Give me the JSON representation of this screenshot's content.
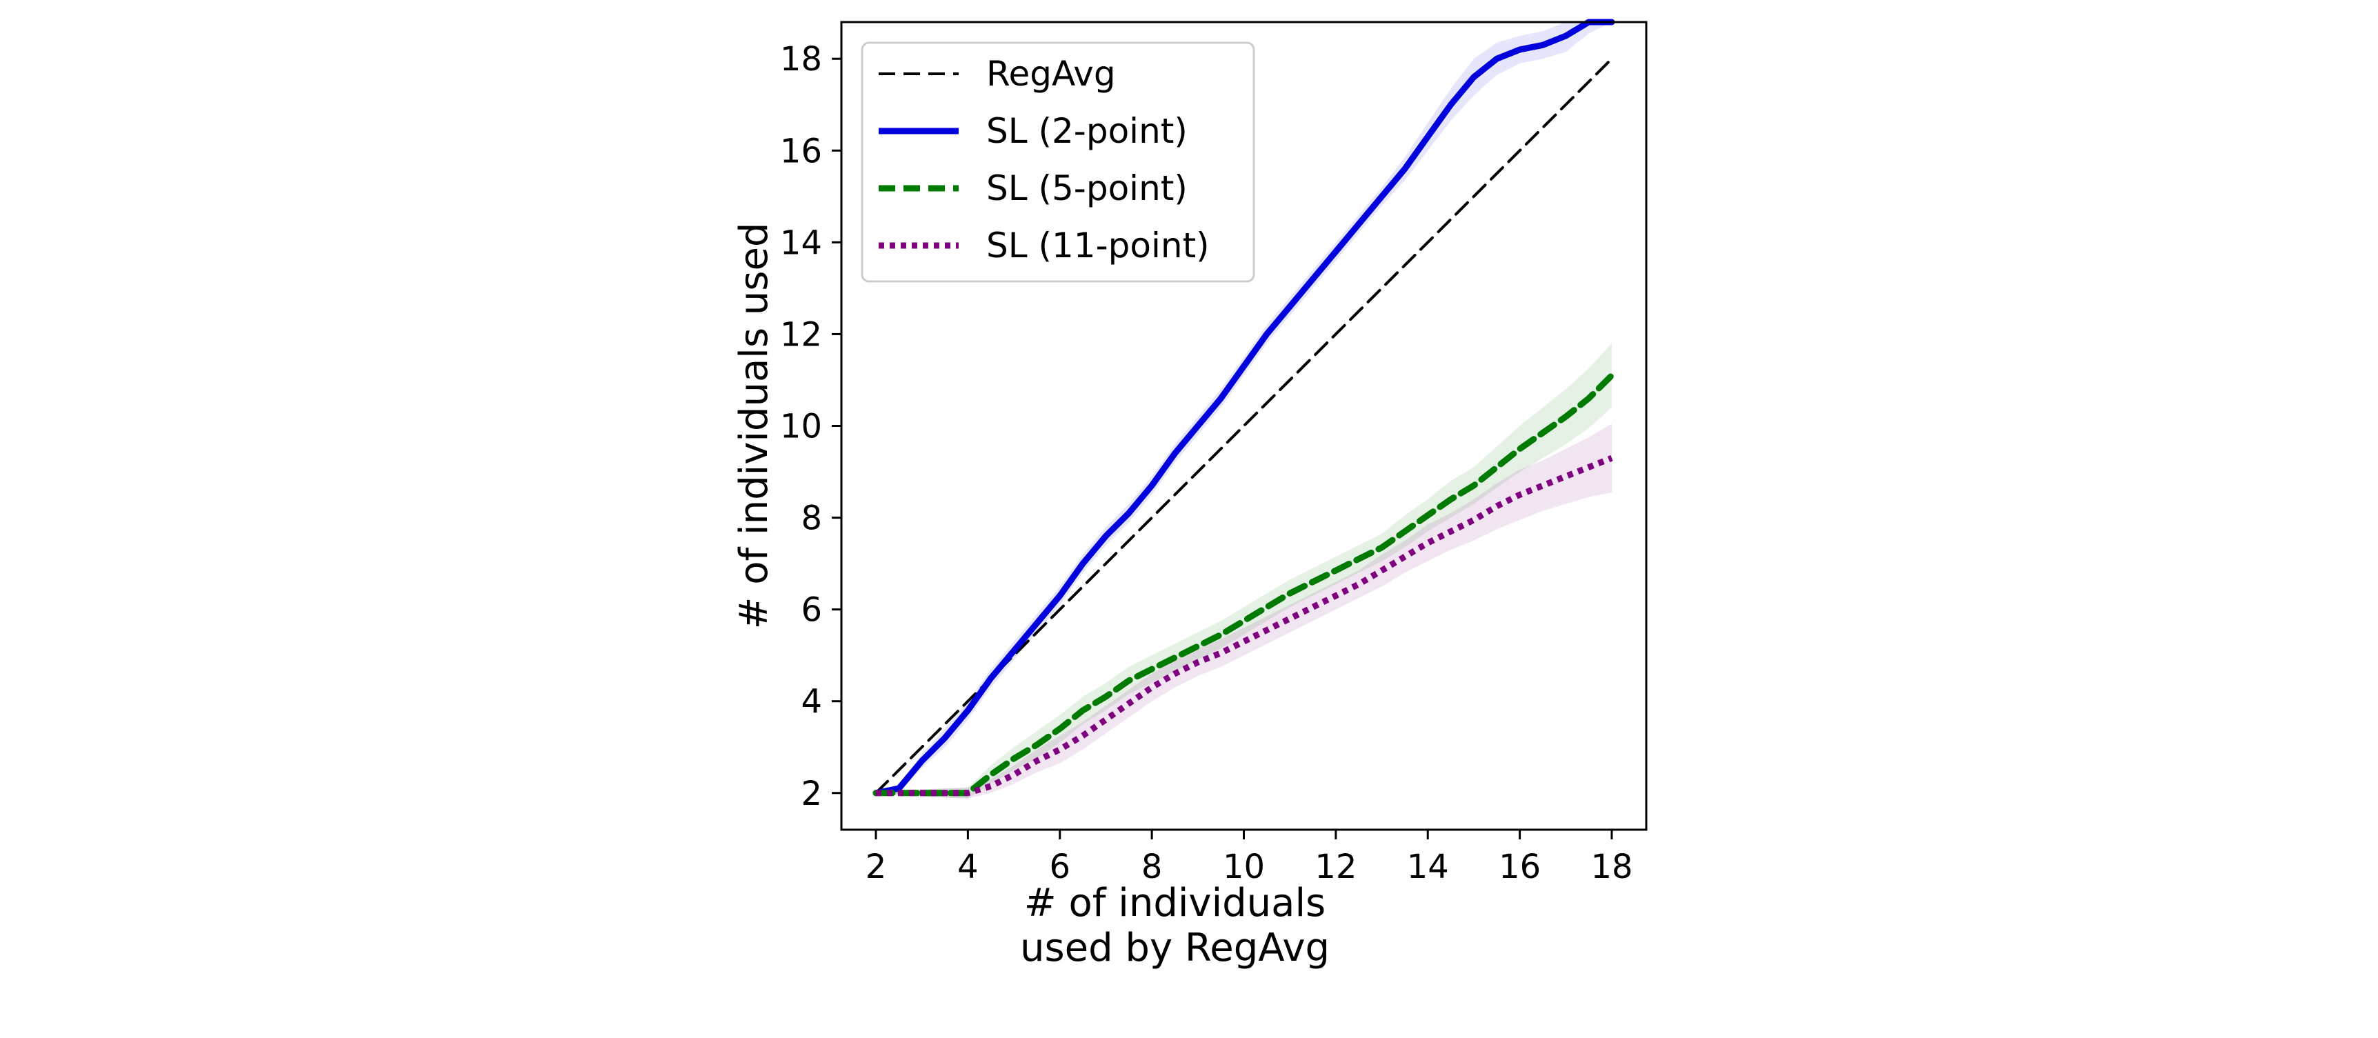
{
  "chart_data": {
    "type": "line",
    "xlabel_lines": [
      "# of individuals",
      "used by RegAvg"
    ],
    "ylabel": "# of individuals used",
    "xlim": [
      1.25,
      18.75
    ],
    "ylim": [
      1.2,
      18.8
    ],
    "xticks": [
      2,
      4,
      6,
      8,
      10,
      12,
      14,
      16,
      18
    ],
    "yticks": [
      2,
      4,
      6,
      8,
      10,
      12,
      14,
      16,
      18
    ],
    "legend_position": "upper left",
    "series": [
      {
        "name": "RegAvg",
        "color": "#000000",
        "style": "dashed",
        "x": [
          2,
          18
        ],
        "y": [
          2,
          18
        ]
      },
      {
        "name": "SL (2-point)",
        "color": "#0000dd",
        "style": "solid",
        "band": true,
        "x": [
          2,
          2.5,
          3,
          3.5,
          4,
          4.5,
          5,
          5.5,
          6,
          6.5,
          7,
          7.5,
          8,
          8.5,
          9,
          9.5,
          10,
          10.5,
          11,
          11.5,
          12,
          12.5,
          13,
          13.5,
          14,
          14.5,
          15,
          15.5,
          16,
          16.5,
          17,
          17.5,
          18
        ],
        "y": [
          2,
          2.1,
          2.7,
          3.2,
          3.8,
          4.5,
          5.1,
          5.7,
          6.3,
          7.0,
          7.6,
          8.1,
          8.7,
          9.4,
          10.0,
          10.6,
          11.3,
          12.0,
          12.6,
          13.2,
          13.8,
          14.4,
          15.0,
          15.6,
          16.3,
          17.0,
          17.6,
          18.0,
          18.2,
          18.3,
          18.5,
          19.0,
          19.6
        ],
        "band_width": [
          0,
          0.1,
          0.15,
          0.2,
          0.2,
          0.2,
          0.2,
          0.2,
          0.2,
          0.2,
          0.2,
          0.2,
          0.2,
          0.2,
          0.2,
          0.2,
          0.2,
          0.2,
          0.2,
          0.2,
          0.2,
          0.2,
          0.2,
          0.25,
          0.3,
          0.35,
          0.4,
          0.35,
          0.3,
          0.3,
          0.35,
          0.45,
          0.6
        ]
      },
      {
        "name": "SL (5-point)",
        "color": "#007a00",
        "style": "dashed",
        "band": true,
        "x": [
          2,
          2.5,
          3,
          3.5,
          4,
          4.5,
          5,
          5.5,
          6,
          6.5,
          7,
          7.5,
          8,
          8.5,
          9,
          9.5,
          10,
          10.5,
          11,
          11.5,
          12,
          12.5,
          13,
          13.5,
          14,
          14.5,
          15,
          15.5,
          16,
          16.5,
          17,
          17.5,
          18
        ],
        "y": [
          2,
          2,
          2,
          2,
          2,
          2.4,
          2.75,
          3.05,
          3.4,
          3.8,
          4.1,
          4.45,
          4.7,
          4.95,
          5.2,
          5.45,
          5.75,
          6.05,
          6.35,
          6.6,
          6.85,
          7.1,
          7.35,
          7.7,
          8.05,
          8.4,
          8.7,
          9.1,
          9.5,
          9.85,
          10.2,
          10.6,
          11.1
        ],
        "band_width": [
          0,
          0.05,
          0.08,
          0.1,
          0.12,
          0.2,
          0.25,
          0.3,
          0.3,
          0.3,
          0.3,
          0.3,
          0.3,
          0.3,
          0.3,
          0.3,
          0.3,
          0.3,
          0.3,
          0.3,
          0.3,
          0.3,
          0.3,
          0.35,
          0.35,
          0.4,
          0.4,
          0.45,
          0.5,
          0.55,
          0.6,
          0.65,
          0.7
        ]
      },
      {
        "name": "SL (11-point)",
        "color": "#7f007f",
        "style": "dotted",
        "band": true,
        "x": [
          2,
          2.5,
          3,
          3.5,
          4,
          4.5,
          5,
          5.5,
          6,
          6.5,
          7,
          7.5,
          8,
          8.5,
          9,
          9.5,
          10,
          10.5,
          11,
          11.5,
          12,
          12.5,
          13,
          13.5,
          14,
          14.5,
          15,
          15.5,
          16,
          16.5,
          17,
          17.5,
          18
        ],
        "y": [
          2,
          2,
          2,
          2,
          2,
          2.15,
          2.4,
          2.7,
          2.95,
          3.25,
          3.6,
          3.95,
          4.3,
          4.6,
          4.85,
          5.05,
          5.3,
          5.55,
          5.8,
          6.05,
          6.3,
          6.55,
          6.85,
          7.15,
          7.45,
          7.7,
          7.95,
          8.25,
          8.5,
          8.7,
          8.9,
          9.1,
          9.3
        ],
        "band_width": [
          0,
          0.05,
          0.08,
          0.1,
          0.12,
          0.15,
          0.2,
          0.25,
          0.3,
          0.3,
          0.3,
          0.3,
          0.3,
          0.3,
          0.3,
          0.3,
          0.3,
          0.3,
          0.3,
          0.3,
          0.3,
          0.3,
          0.35,
          0.35,
          0.4,
          0.4,
          0.45,
          0.5,
          0.55,
          0.55,
          0.6,
          0.65,
          0.75
        ]
      }
    ]
  }
}
